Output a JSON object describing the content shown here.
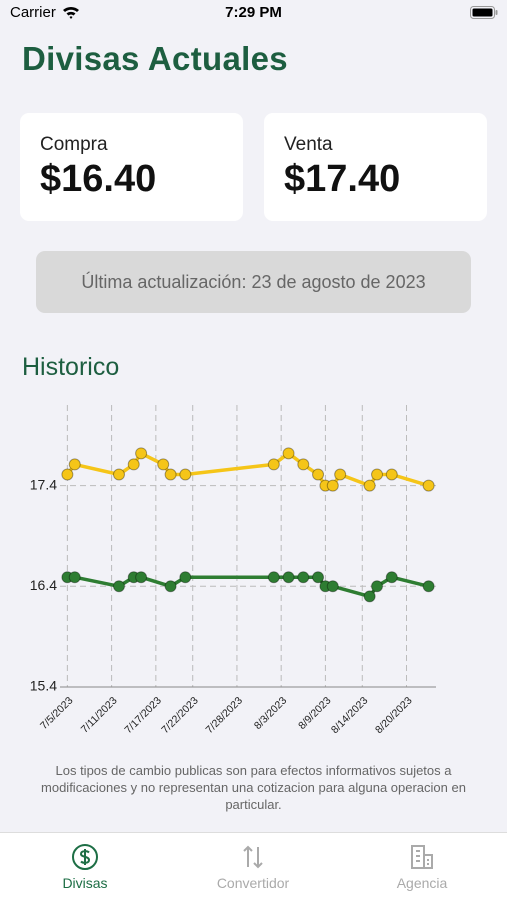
{
  "status_bar": {
    "carrier": "Carrier",
    "time": "7:29 PM"
  },
  "header": {
    "title": "Divisas Actuales"
  },
  "cards": [
    {
      "label": "Compra",
      "value": "$16.40"
    },
    {
      "label": "Venta",
      "value": "$17.40"
    }
  ],
  "update_notice": "Última actualización: 23 de agosto de 2023",
  "section_title": "Historico",
  "chart_data": {
    "type": "line",
    "series": [
      {
        "color": "#f5c518",
        "x": [
          "2023-07-05",
          "2023-07-06",
          "2023-07-12",
          "2023-07-14",
          "2023-07-15",
          "2023-07-18",
          "2023-07-19",
          "2023-07-21",
          "2023-08-02",
          "2023-08-04",
          "2023-08-06",
          "2023-08-08",
          "2023-08-09",
          "2023-08-10",
          "2023-08-11",
          "2023-08-15",
          "2023-08-16",
          "2023-08-18",
          "2023-08-23"
        ],
        "values": [
          17.51,
          17.61,
          17.51,
          17.61,
          17.72,
          17.61,
          17.51,
          17.51,
          17.61,
          17.72,
          17.61,
          17.51,
          17.4,
          17.4,
          17.51,
          17.4,
          17.51,
          17.51,
          17.4
        ]
      },
      {
        "color": "#2e7d32",
        "x": [
          "2023-07-05",
          "2023-07-06",
          "2023-07-12",
          "2023-07-14",
          "2023-07-15",
          "2023-07-19",
          "2023-07-21",
          "2023-08-02",
          "2023-08-04",
          "2023-08-06",
          "2023-08-08",
          "2023-08-09",
          "2023-08-10",
          "2023-08-15",
          "2023-08-16",
          "2023-08-18",
          "2023-08-23"
        ],
        "values": [
          16.49,
          16.49,
          16.4,
          16.49,
          16.49,
          16.4,
          16.49,
          16.49,
          16.49,
          16.49,
          16.49,
          16.4,
          16.4,
          16.3,
          16.4,
          16.49,
          16.4
        ]
      }
    ],
    "xlim": [
      "2023-07-04",
      "2023-08-24"
    ],
    "xticks": [
      {
        "value": "2023-07-05",
        "label": "7/5/2023"
      },
      {
        "value": "2023-07-11",
        "label": "7/11/2023"
      },
      {
        "value": "2023-07-17",
        "label": "7/17/2023"
      },
      {
        "value": "2023-07-22",
        "label": "7/22/2023"
      },
      {
        "value": "2023-07-28",
        "label": "7/28/2023"
      },
      {
        "value": "2023-08-03",
        "label": "8/3/2023"
      },
      {
        "value": "2023-08-09",
        "label": "8/9/2023"
      },
      {
        "value": "2023-08-14",
        "label": "8/14/2023"
      },
      {
        "value": "2023-08-20",
        "label": "8/20/2023"
      }
    ],
    "ylim": [
      15.4,
      18.2
    ],
    "yticks": [
      15.4,
      16.4,
      17.4
    ],
    "grid": true
  },
  "disclaimer": "Los tipos de cambio publicas son para efectos informativos sujetos a modificaciones y no representan una cotizacion para alguna operacion en particular.",
  "tabs": [
    {
      "label": "Divisas"
    },
    {
      "label": "Convertidor"
    },
    {
      "label": "Agencia"
    }
  ]
}
